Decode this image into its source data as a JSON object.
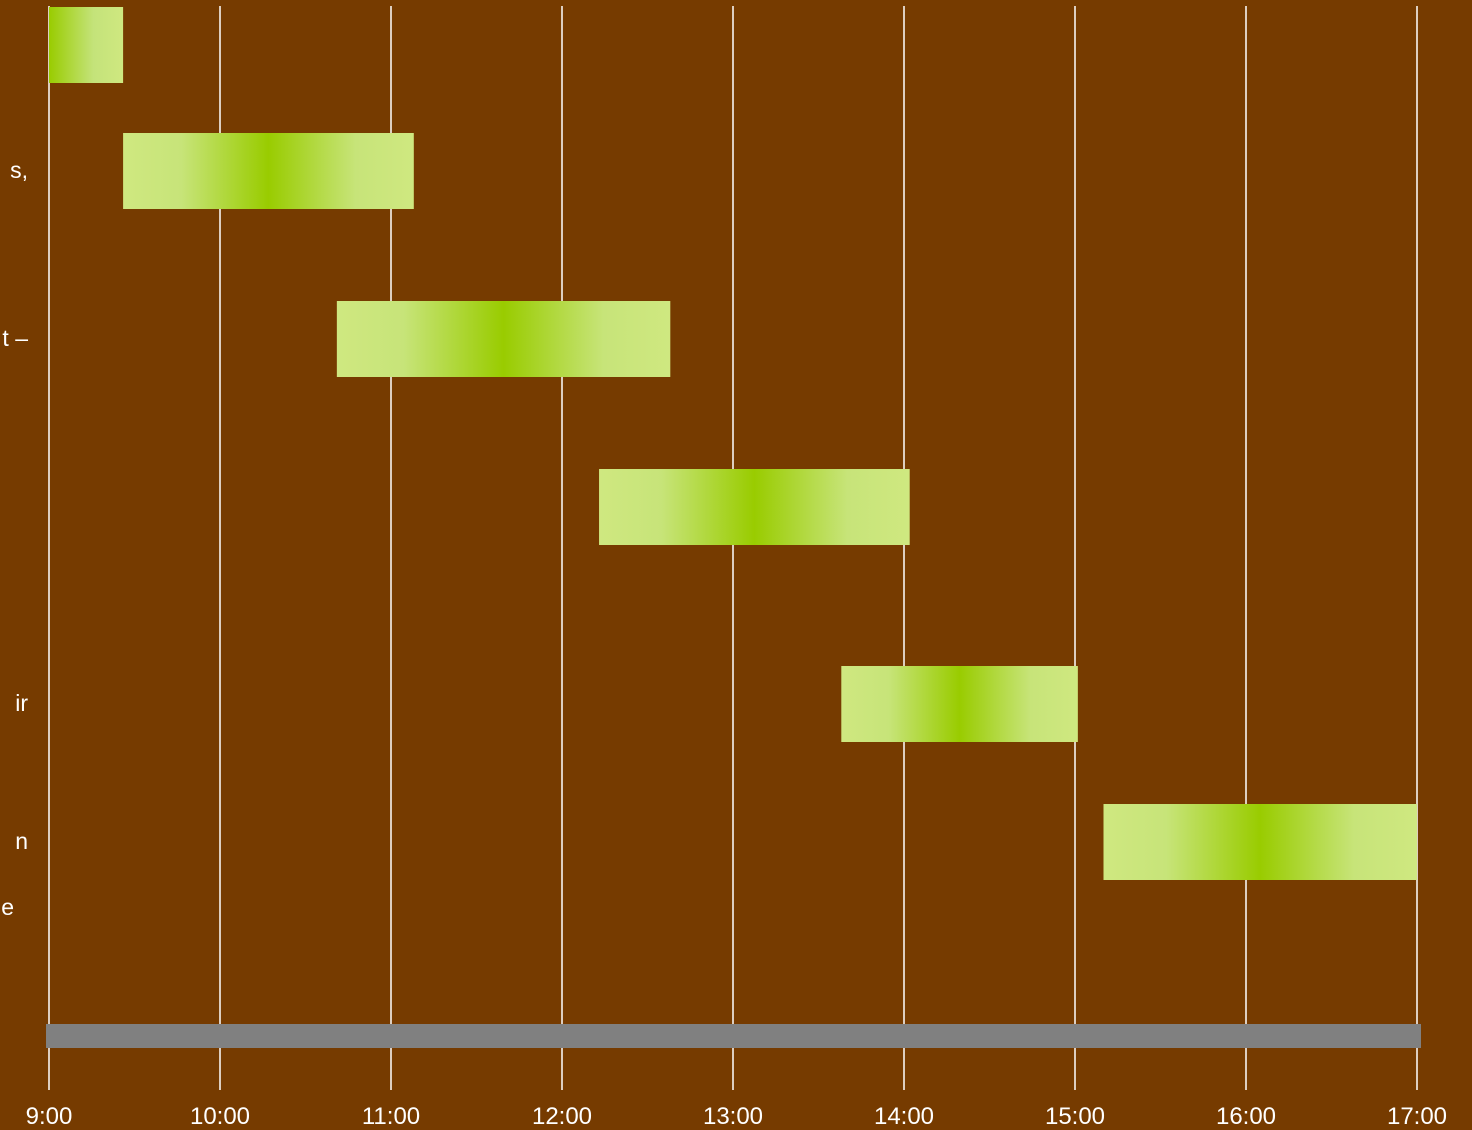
{
  "chart_data": {
    "type": "bar",
    "orientation": "horizontal-timeline",
    "x_ticks": [
      "9:00",
      "10:00",
      "11:00",
      "12:00",
      "13:00",
      "14:00",
      "15:00",
      "16:00",
      "17:00"
    ],
    "xlim": [
      "9:00",
      "17:00"
    ],
    "grid": true,
    "tasks": [
      {
        "label": "",
        "start": "9:00",
        "end": "9:26"
      },
      {
        "label": "s,",
        "start": "9:26",
        "end": "11:08"
      },
      {
        "label": "t –",
        "start": "10:41",
        "end": "12:38"
      },
      {
        "label": "",
        "start": "12:13",
        "end": "14:02"
      },
      {
        "label": "ir",
        "start": "13:38",
        "end": "15:01"
      },
      {
        "label": "n",
        "start": "15:10",
        "end": "17:00"
      }
    ],
    "extra_labels": [
      "e"
    ],
    "colors": {
      "background": "#763b00",
      "bar_edge": "#cfe880",
      "bar_center": "#99cc00",
      "grid": "#ffffff",
      "axis_band": "#808080"
    }
  }
}
